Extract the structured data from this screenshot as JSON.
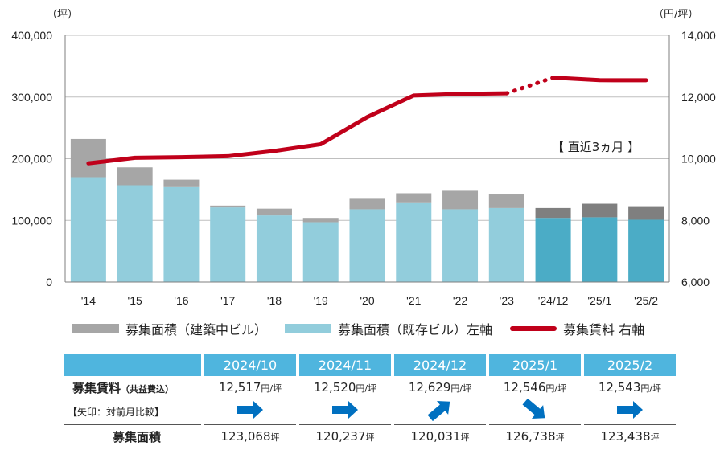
{
  "chart_data": {
    "type": "bar+line",
    "categories": [
      "'14",
      "'15",
      "'16",
      "'17",
      "'18",
      "'19",
      "'20",
      "'21",
      "'22",
      "'23",
      "'24/12",
      "'25/1",
      "'25/2"
    ],
    "series": [
      {
        "name": "募集面積（建築中ビル）",
        "type": "stacked-bar",
        "axis": "left",
        "values": [
          62000,
          29000,
          12000,
          3000,
          11000,
          7000,
          17000,
          16000,
          30000,
          22000,
          16000,
          22000,
          22000
        ]
      },
      {
        "name": "募集面積（既存ビル）左軸",
        "type": "stacked-bar",
        "axis": "left",
        "values": [
          170000,
          157000,
          154000,
          121000,
          108000,
          97000,
          118000,
          128000,
          118000,
          120000,
          104000,
          105000,
          101000
        ]
      },
      {
        "name": "募集賃料 右軸",
        "type": "line",
        "axis": "right",
        "values": [
          9850,
          10030,
          10050,
          10080,
          10250,
          10470,
          11350,
          12050,
          12100,
          12120,
          12629,
          12546,
          12543
        ],
        "dotted_between": [
          9,
          10
        ]
      }
    ],
    "colors": {
      "under_construction": "#a6a6a6",
      "existing": "#92cddc",
      "under_construction_recent": "#7f7f7f",
      "existing_recent": "#4bacc6",
      "rent_line": "#c0001a"
    },
    "left_axis": {
      "unit": "（坪）",
      "ticks": [
        "0",
        "100,000",
        "200,000",
        "300,000",
        "400,000"
      ],
      "ylim": [
        0,
        400000
      ]
    },
    "right_axis": {
      "unit": "（円/坪）",
      "ticks": [
        "6,000",
        "8,000",
        "10,000",
        "12,000",
        "14,000"
      ],
      "ylim": [
        6000,
        14000
      ]
    },
    "annotation": "【 直近3ヵ月 】",
    "grid": "horizontal"
  },
  "legend": {
    "items": [
      {
        "label": "募集面積（建築中ビル）",
        "color": "#a6a6a6",
        "kind": "bar"
      },
      {
        "label": "募集面積（既存ビル）左軸",
        "color": "#92cddc",
        "kind": "bar"
      },
      {
        "label": "募集賃料 右軸",
        "color": "#c0001a",
        "kind": "line"
      }
    ]
  },
  "table": {
    "months": [
      "2024/10",
      "2024/11",
      "2024/12",
      "2025/1",
      "2025/2"
    ],
    "rent_label": "募集賃料",
    "rent_note": "（共益費込）",
    "rent_values": [
      "12,517",
      "12,520",
      "12,629",
      "12,546",
      "12,543"
    ],
    "rent_unit": "円/坪",
    "arrow_label": "【矢印：対前月比較】",
    "arrows": [
      "right",
      "right",
      "up-right",
      "down-right",
      "right"
    ],
    "area_label": "募集面積",
    "area_values": [
      "123,068",
      "120,237",
      "120,031",
      "126,738",
      "123,438"
    ],
    "area_unit": "坪",
    "header_color": "#4fb5de",
    "arrow_color": "#0070c0"
  }
}
